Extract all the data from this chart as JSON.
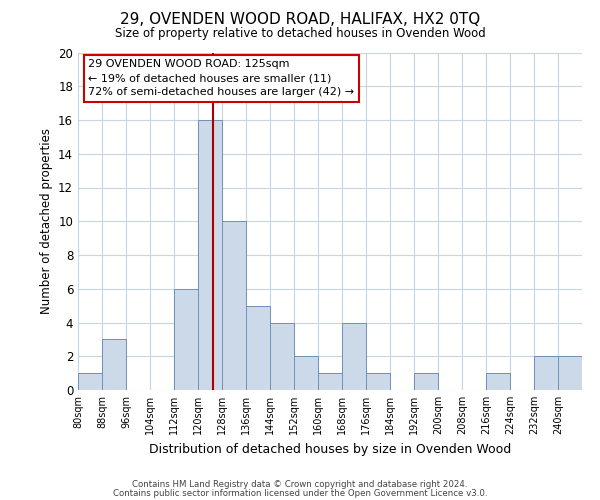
{
  "title": "29, OVENDEN WOOD ROAD, HALIFAX, HX2 0TQ",
  "subtitle": "Size of property relative to detached houses in Ovenden Wood",
  "xlabel": "Distribution of detached houses by size in Ovenden Wood",
  "ylabel": "Number of detached properties",
  "bin_labels": [
    "80sqm",
    "88sqm",
    "96sqm",
    "104sqm",
    "112sqm",
    "120sqm",
    "128sqm",
    "136sqm",
    "144sqm",
    "152sqm",
    "160sqm",
    "168sqm",
    "176sqm",
    "184sqm",
    "192sqm",
    "200sqm",
    "208sqm",
    "216sqm",
    "224sqm",
    "232sqm",
    "240sqm"
  ],
  "bin_edges": [
    80,
    88,
    96,
    104,
    112,
    120,
    128,
    136,
    144,
    152,
    160,
    168,
    176,
    184,
    192,
    200,
    208,
    216,
    224,
    232,
    240,
    248
  ],
  "counts": [
    1,
    3,
    0,
    0,
    6,
    16,
    10,
    5,
    4,
    2,
    1,
    4,
    1,
    0,
    1,
    0,
    0,
    1,
    0,
    2,
    2
  ],
  "bar_color": "#ccd9e8",
  "bar_edge_color": "#7090b8",
  "vline_x": 125,
  "vline_color": "#aa0000",
  "annotation_line1": "29 OVENDEN WOOD ROAD: 125sqm",
  "annotation_line2": "← 19% of detached houses are smaller (11)",
  "annotation_line3": "72% of semi-detached houses are larger (42) →",
  "annotation_box_color": "#ffffff",
  "annotation_box_edge": "#cc0000",
  "ylim": [
    0,
    20
  ],
  "yticks": [
    0,
    2,
    4,
    6,
    8,
    10,
    12,
    14,
    16,
    18,
    20
  ],
  "footnote1": "Contains HM Land Registry data © Crown copyright and database right 2024.",
  "footnote2": "Contains public sector information licensed under the Open Government Licence v3.0.",
  "bg_color": "#ffffff",
  "grid_color": "#c8d4e0"
}
